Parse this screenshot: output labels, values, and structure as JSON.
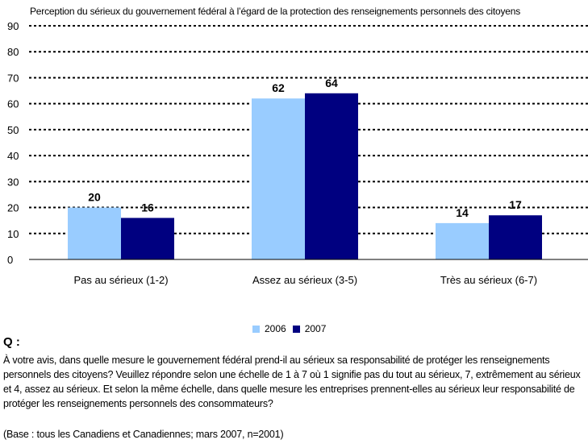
{
  "chart_data": {
    "type": "bar",
    "title": "Perception du sérieux du gouvernement fédéral à l’égard de la protection des renseignements personnels des citoyens",
    "categories": [
      "Pas au sérieux (1-2)",
      "Assez au sérieux (3-5)",
      "Très au sérieux (6-7)"
    ],
    "series": [
      {
        "name": "2006",
        "values": [
          20,
          62,
          14
        ],
        "color": "#99ccff"
      },
      {
        "name": "2007",
        "values": [
          16,
          64,
          17
        ],
        "color": "#000080"
      }
    ],
    "ylim": [
      0,
      90
    ],
    "yticks": [
      0,
      10,
      20,
      30,
      40,
      50,
      60,
      70,
      80,
      90
    ],
    "grid": true,
    "legend": "bottom-center",
    "xlabel": "",
    "ylabel": ""
  },
  "question": {
    "label": "Q :",
    "text": "À votre avis, dans quelle mesure le gouvernement fédéral prend-il au sérieux sa responsabilité de protéger les renseignements personnels des citoyens? Veuillez répondre selon une échelle de 1 à 7 où 1 signifie pas du tout au sérieux, 7, extrêmement au sérieux et 4, assez au sérieux. Et selon la même échelle, dans quelle mesure les entreprises prennent-elles au sérieux leur responsabilité de protéger les renseignements personnels des consommateurs?",
    "base": "(Base : tous les Canadiens et Canadiennes; mars 2007, n=2001)"
  }
}
